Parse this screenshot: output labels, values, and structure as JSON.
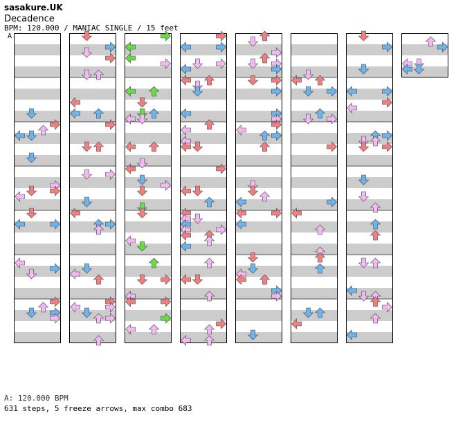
{
  "header": {
    "artist": "sasakure.UK",
    "title": "Decadence",
    "info": "BPM: 120.000 / MANIAC SINGLE / 15 feet",
    "bpm_marker": "A"
  },
  "footer": {
    "bpm_legend": "A: 120.000 BPM",
    "stats": "631 steps, 5 freeze arrows, max combo 683"
  },
  "chart": {
    "columns": 8,
    "measures_per_column": 7,
    "total_measures": 50,
    "colors": {
      "stripe": "#cccccc",
      "background": "#ffffff",
      "border": "#000000",
      "arrow_red": "#f08080",
      "arrow_blue": "#6ab4f0",
      "arrow_pink": "#f4b8f4",
      "arrow_green": "#66dd44"
    }
  }
}
